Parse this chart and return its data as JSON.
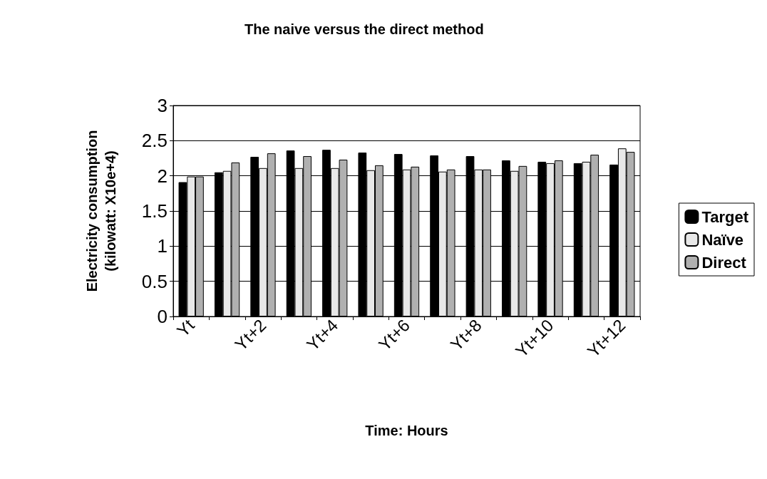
{
  "chart_data": {
    "type": "bar",
    "title": "The naive versus the direct method",
    "xlabel": "Time: Hours",
    "ylabel": "Electricity consumption\n(kilowatt: X10e+4)",
    "categories": [
      "Yt",
      null,
      "Yt+2",
      null,
      "Yt+4",
      null,
      "Yt+6",
      null,
      "Yt+8",
      null,
      "Yt+10",
      null,
      "Yt+12"
    ],
    "series": [
      {
        "name": "Target",
        "color": "#000000",
        "values": [
          1.91,
          2.05,
          2.27,
          2.36,
          2.37,
          2.33,
          2.31,
          2.29,
          2.28,
          2.22,
          2.2,
          2.18,
          2.16
        ]
      },
      {
        "name": "Naïve",
        "color": "#e8e8e8",
        "values": [
          1.99,
          2.07,
          2.11,
          2.11,
          2.11,
          2.08,
          2.09,
          2.06,
          2.09,
          2.07,
          2.18,
          2.2,
          2.39
        ]
      },
      {
        "name": "Direct",
        "color": "#b0b0b0",
        "values": [
          1.99,
          2.19,
          2.32,
          2.28,
          2.23,
          2.15,
          2.13,
          2.09,
          2.09,
          2.14,
          2.22,
          2.3,
          2.34
        ]
      }
    ],
    "ylim": [
      0,
      3
    ],
    "yticks": [
      0,
      0.5,
      1,
      1.5,
      2,
      2.5,
      3
    ],
    "grid": "y",
    "legend": "right"
  }
}
